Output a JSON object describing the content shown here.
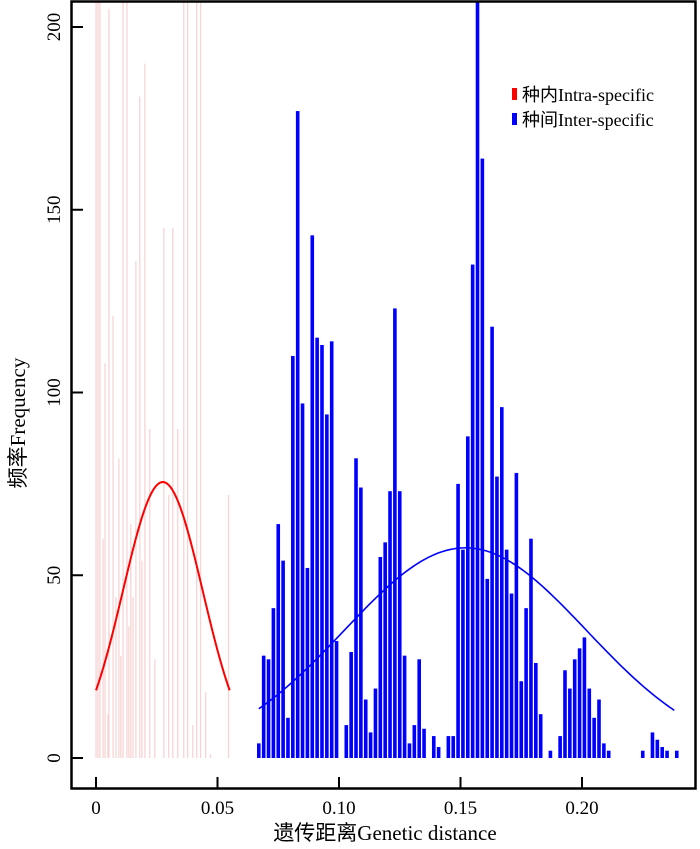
{
  "chart_data": {
    "type": "bar",
    "xlabel": "遗传距离Genetic distance",
    "ylabel": "频率Frequency",
    "xlim": [
      -0.01,
      0.248
    ],
    "ylim": [
      -8.5,
      207
    ],
    "x_ticks": [
      0,
      0.05,
      0.1,
      0.15,
      0.2
    ],
    "x_tick_labels": [
      "0",
      "0.05",
      "0.10",
      "0.15",
      "0.20"
    ],
    "y_ticks": [
      0,
      50,
      100,
      150,
      200
    ],
    "y_tick_labels": [
      "0",
      "50",
      "100",
      "150",
      "200"
    ],
    "grid": false,
    "legend": {
      "placement": "top-right",
      "entries": [
        {
          "label": "种内Intra-specific",
          "color": "#ff0000"
        },
        {
          "label": "种间Inter-specific",
          "color": "#0000ff"
        }
      ]
    },
    "series": [
      {
        "name": "种内Intra-specific",
        "bar_color": "#f7d4d4",
        "x": [
          0.0,
          0.0008,
          0.0016,
          0.0029,
          0.0037,
          0.0049,
          0.0053,
          0.007,
          0.0082,
          0.0094,
          0.0102,
          0.0111,
          0.0127,
          0.0135,
          0.0143,
          0.0152,
          0.0164,
          0.018,
          0.0189,
          0.0201,
          0.0221,
          0.0242,
          0.0279,
          0.0299,
          0.0316,
          0.0336,
          0.0361,
          0.0377,
          0.0398,
          0.0414,
          0.043,
          0.0451,
          0.0471,
          0.0545
        ],
        "values": [
          210,
          210,
          210,
          60,
          108,
          12,
          205,
          121,
          44,
          82,
          28,
          210,
          210,
          36,
          64,
          44,
          136,
          181,
          54,
          190,
          90,
          27,
          145,
          72,
          145,
          90,
          210,
          210,
          9,
          210,
          210,
          18,
          1,
          72
        ],
        "normal_fit": {
          "mean": 0.0275,
          "sd": 0.0164,
          "peak": 75.5,
          "range": [
            0,
            0.055
          ],
          "color": "#ff0000"
        }
      },
      {
        "name": "种间Inter-specific",
        "bar_color": "#0000ff",
        "x_start": 0.067,
        "bin_width": 0.002,
        "values": [
          4,
          28,
          27,
          41,
          64,
          54,
          11,
          110,
          177,
          97,
          52,
          143,
          115,
          113,
          94,
          114,
          32,
          0,
          9,
          29,
          82,
          74,
          16,
          7,
          19,
          55,
          59,
          73,
          123,
          73,
          28,
          4,
          9,
          27,
          8,
          0,
          6,
          3,
          0,
          6,
          6,
          75,
          57,
          88,
          135,
          210,
          164,
          49,
          118,
          77,
          96,
          57,
          45,
          78,
          21,
          41,
          60,
          26,
          12,
          0,
          2,
          0,
          6,
          24,
          19,
          27,
          30,
          33,
          19,
          11,
          16,
          4,
          2,
          0,
          0,
          0,
          0,
          0,
          0,
          2,
          0,
          7,
          5,
          3,
          2,
          0,
          2
        ],
        "normal_fit": {
          "mean": 0.152,
          "sd": 0.0499,
          "peak": 57.5,
          "range": [
            0.067,
            0.238
          ],
          "color": "#0000ff"
        }
      }
    ]
  }
}
